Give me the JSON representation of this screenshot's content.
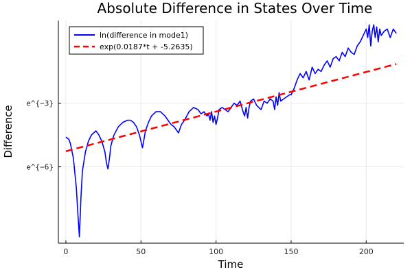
{
  "chart_data": {
    "type": "line",
    "title": "Absolute Difference in States Over Time",
    "xlabel": "Time",
    "ylabel": "Difference",
    "xlim": [
      -5,
      225
    ],
    "ylim": [
      -9.6,
      0.9
    ],
    "x_ticks": [
      0,
      50,
      100,
      150,
      200
    ],
    "y_ticks": [
      {
        "value": -3,
        "label": "e^{−3}"
      },
      {
        "value": -6,
        "label": "e^{−6}"
      }
    ],
    "grid": true,
    "legend_position": "top-left",
    "colors": {
      "series1": "#0000ff",
      "series2": "#ff0000"
    },
    "series": [
      {
        "name": "ln(difference in mode1)",
        "style": "solid",
        "x": [
          0,
          2,
          3,
          5,
          7,
          8,
          9,
          10,
          11,
          13,
          15,
          17,
          20,
          22,
          24,
          26,
          27,
          28,
          29,
          30,
          32,
          35,
          38,
          41,
          43,
          45,
          47,
          49,
          50,
          51,
          52,
          53,
          55,
          57,
          60,
          63,
          66,
          68,
          70,
          72,
          73,
          74,
          75,
          76,
          77,
          79,
          82,
          85,
          88,
          90,
          92,
          94,
          95,
          96,
          97,
          98,
          99,
          100,
          101,
          102,
          104,
          106,
          108,
          110,
          112,
          114,
          116,
          118,
          119,
          120,
          121,
          122,
          123,
          125,
          127,
          130,
          132,
          134,
          136,
          138,
          139,
          140,
          141,
          142,
          143,
          145,
          147,
          149,
          150,
          152,
          154,
          156,
          158,
          160,
          162,
          164,
          166,
          168,
          170,
          172,
          174,
          176,
          178,
          180,
          182,
          184,
          186,
          188,
          190,
          192,
          194,
          196,
          198,
          200,
          201,
          202,
          203,
          204,
          205,
          206,
          207,
          208,
          209,
          210,
          212,
          214,
          216,
          218,
          220
        ],
        "y": [
          -4.6,
          -4.7,
          -4.9,
          -5.6,
          -7.0,
          -8.2,
          -9.3,
          -7.5,
          -6.2,
          -5.3,
          -4.8,
          -4.5,
          -4.3,
          -4.5,
          -4.8,
          -5.3,
          -5.8,
          -6.1,
          -5.6,
          -5.0,
          -4.5,
          -4.1,
          -3.9,
          -3.8,
          -3.8,
          -3.9,
          -4.1,
          -4.5,
          -4.8,
          -5.1,
          -4.7,
          -4.3,
          -3.9,
          -3.6,
          -3.4,
          -3.4,
          -3.6,
          -3.8,
          -4.0,
          -4.1,
          -4.2,
          -4.3,
          -4.4,
          -4.2,
          -4.0,
          -3.8,
          -3.4,
          -3.2,
          -3.3,
          -3.5,
          -3.4,
          -3.6,
          -3.5,
          -3.8,
          -3.4,
          -3.9,
          -3.6,
          -4.0,
          -3.7,
          -3.3,
          -3.2,
          -3.3,
          -3.4,
          -3.2,
          -3.0,
          -3.1,
          -2.9,
          -3.4,
          -3.6,
          -3.2,
          -3.7,
          -3.2,
          -2.9,
          -2.8,
          -3.1,
          -3.3,
          -2.9,
          -3.0,
          -2.8,
          -2.9,
          -3.3,
          -2.7,
          -3.1,
          -2.5,
          -2.9,
          -2.8,
          -2.7,
          -2.6,
          -2.6,
          -2.3,
          -1.9,
          -1.6,
          -1.8,
          -1.5,
          -1.9,
          -1.3,
          -1.6,
          -1.4,
          -1.5,
          -1.2,
          -1.0,
          -1.3,
          -0.9,
          -0.8,
          -1.0,
          -0.6,
          -0.8,
          -0.4,
          -0.6,
          -0.7,
          -0.3,
          -0.1,
          0.2,
          0.5,
          0.1,
          0.7,
          -0.3,
          0.4,
          0.7,
          0.1,
          0.6,
          -0.1,
          0.5,
          0.2,
          0.4,
          0.5,
          0.1,
          0.5,
          0.3
        ]
      },
      {
        "name": "exp(0.0187*t + -5.2635)",
        "style": "dashed",
        "x": [
          0,
          220
        ],
        "y": [
          -5.2635,
          -1.1495
        ]
      }
    ]
  }
}
